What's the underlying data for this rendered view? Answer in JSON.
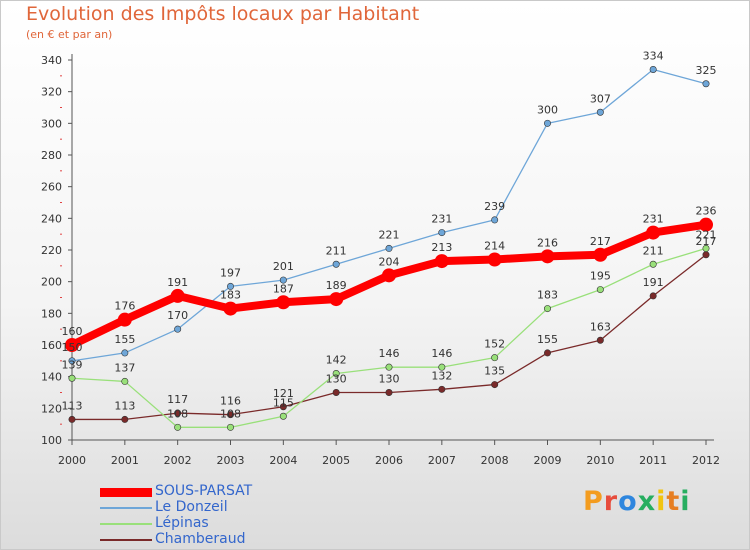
{
  "title": "Evolution des Impôts locaux par Habitant",
  "subtitle": "(en € et par an)",
  "logo": {
    "letters": [
      "P",
      "r",
      "o",
      "x",
      "i",
      "t",
      "i"
    ],
    "colors": [
      "#f39c1f",
      "#e74c3c",
      "#2e86de",
      "#27ae60",
      "#f1c40f",
      "#e67e22",
      "#27ae60"
    ]
  },
  "chart_data": {
    "type": "line",
    "x": [
      "2000",
      "2001",
      "2002",
      "2003",
      "2004",
      "2005",
      "2006",
      "2007",
      "2008",
      "2009",
      "2010",
      "2011",
      "2012"
    ],
    "ylim": [
      100,
      340
    ],
    "yticks": [
      100,
      120,
      140,
      160,
      180,
      200,
      220,
      240,
      260,
      280,
      300,
      320,
      340
    ],
    "grid": false,
    "legend_position": "bottom-left",
    "series": [
      {
        "name": "SOUS-PARSAT",
        "color": "#ff0000",
        "values": [
          160,
          176,
          191,
          183,
          187,
          189,
          204,
          213,
          214,
          216,
          217,
          231,
          236
        ]
      },
      {
        "name": "Le Donzeil",
        "color": "#6ea6d8",
        "values": [
          150,
          155,
          170,
          197,
          201,
          211,
          221,
          231,
          239,
          300,
          307,
          334,
          325
        ]
      },
      {
        "name": "Lépinas",
        "color": "#99e07a",
        "values": [
          139,
          137,
          108,
          108,
          115,
          142,
          146,
          146,
          152,
          183,
          195,
          211,
          221
        ]
      },
      {
        "name": "Chamberaud",
        "color": "#7a2a2a",
        "values": [
          113,
          113,
          117,
          116,
          121,
          130,
          130,
          132,
          135,
          155,
          163,
          191,
          217
        ]
      }
    ]
  }
}
